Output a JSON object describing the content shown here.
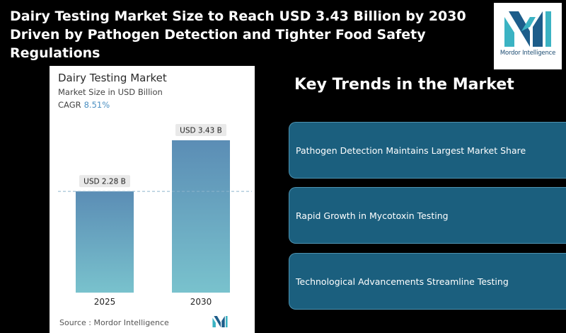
{
  "headline": "Dairy Testing Market Size to Reach USD 3.43 Billion by 2030 Driven by Pathogen Detection and Tighter Food Safety Regulations",
  "logo": {
    "text": "Mordor Intelligence",
    "icon": "mordor-intelligence-logo"
  },
  "chart": {
    "title": "Dairy Testing Market",
    "subtitle": "Market Size in USD Billion",
    "cagr_label": "CAGR",
    "cagr_value": "8.51%",
    "source": "Source :  Mordor Intelligence"
  },
  "chart_data": {
    "type": "bar",
    "title": "Dairy Testing Market",
    "ylabel": "Market Size in USD Billion",
    "categories": [
      "2025",
      "2030"
    ],
    "values": [
      2.28,
      3.43
    ],
    "value_labels": [
      "USD 2.28 B",
      "USD 3.43 B"
    ],
    "ylim": [
      0,
      3.43
    ],
    "grid": false,
    "reference_line": {
      "value": 2.28,
      "style": "dashed"
    },
    "colors": {
      "bar_top": "#5b8db5",
      "bar_bottom": "#79c2cd",
      "reference_line": "#8cb4cc"
    }
  },
  "trends": {
    "title": "Key Trends in the Market",
    "items": [
      "Pathogen Detection Maintains Largest Market Share",
      "Rapid Growth in Mycotoxin Testing",
      "Technological Advancements Streamline Testing"
    ]
  },
  "colors": {
    "trend_card": "#1b5f7e",
    "accent": "#4a8fc1",
    "brand": "#1d4d73"
  }
}
